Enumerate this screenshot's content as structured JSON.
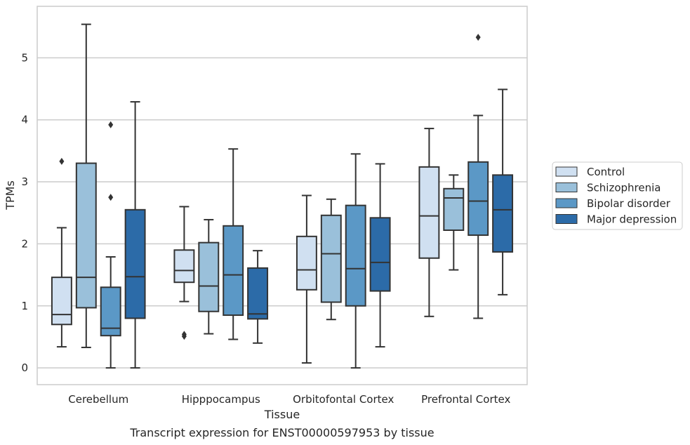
{
  "chart_data": {
    "type": "box",
    "title": "",
    "caption": "Transcript expression for ENST00000597953 by tissue",
    "xlabel": "Tissue",
    "ylabel": "TPMs",
    "ylim": [
      -0.27,
      5.83
    ],
    "yticks": [
      0,
      1,
      2,
      3,
      4,
      5
    ],
    "grid": "horizontal",
    "legend_position": "right",
    "categories": [
      "Cerebellum",
      "Hipppocampus",
      "Orbitofontal Cortex",
      "Prefrontal Cortex"
    ],
    "series": [
      {
        "name": "Control",
        "color": "#d0e0f1",
        "boxes": [
          {
            "whislo": 0.34,
            "q1": 0.7,
            "med": 0.86,
            "q3": 1.46,
            "whishi": 2.26,
            "fliers": [
              3.33
            ]
          },
          {
            "whislo": 1.07,
            "q1": 1.38,
            "med": 1.57,
            "q3": 1.9,
            "whishi": 2.6,
            "fliers": [
              0.51,
              0.54
            ]
          },
          {
            "whislo": 0.08,
            "q1": 1.26,
            "med": 1.58,
            "q3": 2.12,
            "whishi": 2.78,
            "fliers": []
          },
          {
            "whislo": 0.83,
            "q1": 1.77,
            "med": 2.45,
            "q3": 3.24,
            "whishi": 3.86,
            "fliers": []
          }
        ]
      },
      {
        "name": "Schizophrenia",
        "color": "#9ac0da",
        "boxes": [
          {
            "whislo": 0.33,
            "q1": 0.97,
            "med": 1.46,
            "q3": 3.3,
            "whishi": 5.54,
            "fliers": []
          },
          {
            "whislo": 0.55,
            "q1": 0.91,
            "med": 1.32,
            "q3": 2.02,
            "whishi": 2.39,
            "fliers": []
          },
          {
            "whislo": 0.78,
            "q1": 1.06,
            "med": 1.84,
            "q3": 2.46,
            "whishi": 2.72,
            "fliers": []
          },
          {
            "whislo": 1.58,
            "q1": 2.22,
            "med": 2.74,
            "q3": 2.89,
            "whishi": 3.11,
            "fliers": []
          }
        ]
      },
      {
        "name": "Bipolar disorder",
        "color": "#5b98c6",
        "boxes": [
          {
            "whislo": 0.0,
            "q1": 0.52,
            "med": 0.64,
            "q3": 1.3,
            "whishi": 1.79,
            "fliers": [
              2.75,
              3.92
            ]
          },
          {
            "whislo": 0.46,
            "q1": 0.85,
            "med": 1.5,
            "q3": 2.29,
            "whishi": 3.53,
            "fliers": []
          },
          {
            "whislo": 0.0,
            "q1": 1.0,
            "med": 1.6,
            "q3": 2.62,
            "whishi": 3.45,
            "fliers": []
          },
          {
            "whislo": 0.8,
            "q1": 2.14,
            "med": 2.69,
            "q3": 3.32,
            "whishi": 4.07,
            "fliers": [
              5.33
            ]
          }
        ]
      },
      {
        "name": "Major depression",
        "color": "#2c6ba8",
        "boxes": [
          {
            "whislo": 0.0,
            "q1": 0.8,
            "med": 1.47,
            "q3": 2.55,
            "whishi": 4.29,
            "fliers": []
          },
          {
            "whislo": 0.4,
            "q1": 0.79,
            "med": 0.87,
            "q3": 1.61,
            "whishi": 1.89,
            "fliers": []
          },
          {
            "whislo": 0.34,
            "q1": 1.24,
            "med": 1.7,
            "q3": 2.42,
            "whishi": 3.29,
            "fliers": []
          },
          {
            "whislo": 1.18,
            "q1": 1.87,
            "med": 2.55,
            "q3": 3.11,
            "whishi": 4.49,
            "fliers": []
          }
        ]
      }
    ]
  },
  "colors": {
    "grid": "#cccccc",
    "frame": "#cccccc",
    "line": "#333333",
    "text": "#262626"
  }
}
